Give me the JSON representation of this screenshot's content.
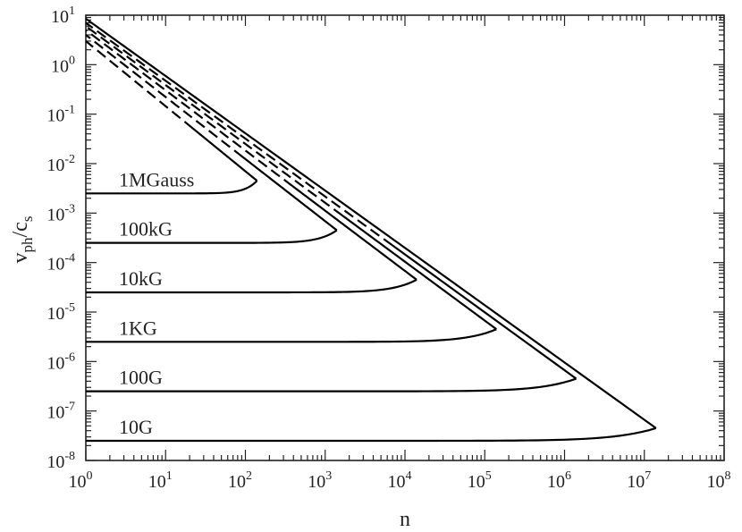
{
  "chart_data": {
    "type": "line",
    "title": "",
    "xlabel": {
      "main": "n",
      "sub": ""
    },
    "ylabel": {
      "main": "v",
      "sub": "ph",
      "mid": "/c",
      "sub2": "s"
    },
    "xscale": "log",
    "yscale": "log",
    "xlim": [
      1,
      100000000
    ],
    "ylim": [
      1e-08,
      10
    ],
    "grid": false,
    "legend": "none",
    "x_ticks": [
      {
        "base": "10",
        "exp": "0"
      },
      {
        "base": "10",
        "exp": "1"
      },
      {
        "base": "10",
        "exp": "2"
      },
      {
        "base": "10",
        "exp": "3"
      },
      {
        "base": "10",
        "exp": "4"
      },
      {
        "base": "10",
        "exp": "5"
      },
      {
        "base": "10",
        "exp": "6"
      },
      {
        "base": "10",
        "exp": "7"
      },
      {
        "base": "10",
        "exp": "8"
      }
    ],
    "y_ticks": [
      {
        "base": "10",
        "exp": "-8"
      },
      {
        "base": "10",
        "exp": "-7"
      },
      {
        "base": "10",
        "exp": "-6"
      },
      {
        "base": "10",
        "exp": "-5"
      },
      {
        "base": "10",
        "exp": "-4"
      },
      {
        "base": "10",
        "exp": "-3"
      },
      {
        "base": "10",
        "exp": "-2"
      },
      {
        "base": "10",
        "exp": "-1"
      },
      {
        "base": "10",
        "exp": "0"
      },
      {
        "base": "10",
        "exp": "1"
      }
    ],
    "series": [
      {
        "label": "1MGauss",
        "style": "solid+dashed",
        "n_max": 140,
        "v_floor": 0.0025,
        "v_turn": 0.0045,
        "v_at_n1": 3.0
      },
      {
        "label": "100kG",
        "style": "solid+dashed",
        "n_max": 1400,
        "v_floor": 0.00025,
        "v_turn": 0.00045,
        "v_at_n1": 4.0
      },
      {
        "label": "10kG",
        "style": "solid+dashed",
        "n_max": 14000,
        "v_floor": 2.5e-05,
        "v_turn": 4.5e-05,
        "v_at_n1": 5.0
      },
      {
        "label": "1KG",
        "style": "solid+dashed",
        "n_max": 140000,
        "v_floor": 2.5e-06,
        "v_turn": 4.5e-06,
        "v_at_n1": 6.0
      },
      {
        "label": "100G",
        "style": "solid+dashed",
        "n_max": 1400000,
        "v_floor": 2.5e-07,
        "v_turn": 4.5e-07,
        "v_at_n1": 7.0
      },
      {
        "label": "10G",
        "style": "solid",
        "n_max": 14000000,
        "v_floor": 2.5e-08,
        "v_turn": 4.5e-08,
        "v_at_n1": 8.5
      }
    ],
    "colors": {
      "line": "#000000",
      "axes": "#222222",
      "background": "#ffffff"
    }
  }
}
